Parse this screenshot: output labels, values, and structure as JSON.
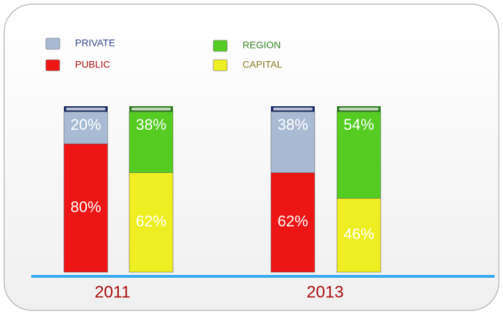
{
  "chart_data": {
    "type": "bar",
    "stacked": true,
    "categories": [
      "2011",
      "2013"
    ],
    "series": [
      {
        "name": "PRIVATE",
        "color": "#a8bad4",
        "values": [
          20,
          38
        ],
        "value_labels": [
          "20%",
          "38%"
        ]
      },
      {
        "name": "PUBLIC",
        "color": "#ee1515",
        "values": [
          80,
          62
        ],
        "value_labels": [
          "80%",
          "62%"
        ]
      },
      {
        "name": "REGION",
        "color": "#55cc22",
        "values": [
          38,
          54
        ],
        "value_labels": [
          "38%",
          "54%"
        ]
      },
      {
        "name": "CAPITAL",
        "color": "#eeee22",
        "values": [
          62,
          46
        ],
        "value_labels": [
          "62%",
          "46%"
        ]
      }
    ]
  }
}
